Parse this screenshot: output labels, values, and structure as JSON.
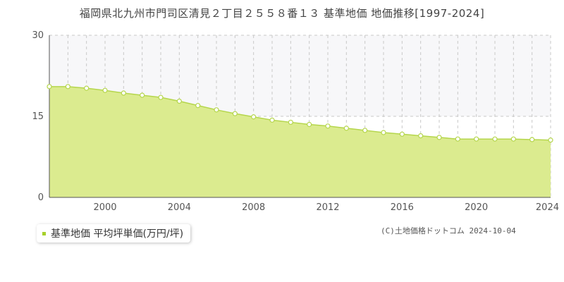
{
  "title": "福岡県北九州市門司区清見２丁目２５５８番１３ 基準地価 地価推移[1997-2024]",
  "legend_label": "基準地価 平均坪単価(万円/坪)",
  "copyright": "(C)土地価格ドットコム 2024-10-04",
  "colors": {
    "fill": "#dbeb8f",
    "line": "#b5d64c",
    "marker_fill": "#ffffff",
    "marker_stroke": "#b5d64c",
    "legend_marker": "#a6d02a",
    "grid": "#c8c8c8",
    "band": "#f7f7f9"
  },
  "chart_data": {
    "type": "area",
    "title": "福岡県北九州市門司区清見２丁目２５５８番１３ 基準地価 地価推移[1997-2024]",
    "xlabel": "",
    "ylabel": "",
    "xlim": [
      1997,
      2024
    ],
    "ylim": [
      0,
      30
    ],
    "y_ticks": [
      "0",
      "15",
      "30"
    ],
    "x_ticks": [
      "2000",
      "2004",
      "2008",
      "2012",
      "2016",
      "2020",
      "2024"
    ],
    "grid": true,
    "legend_position": "bottom-left",
    "series": [
      {
        "name": "基準地価 平均坪単価(万円/坪)",
        "x": [
          1997,
          1998,
          1999,
          2000,
          2001,
          2002,
          2003,
          2004,
          2005,
          2006,
          2007,
          2008,
          2009,
          2010,
          2011,
          2012,
          2013,
          2014,
          2015,
          2016,
          2017,
          2018,
          2019,
          2020,
          2021,
          2022,
          2023,
          2024
        ],
        "values": [
          20.5,
          20.5,
          20.2,
          19.8,
          19.3,
          18.9,
          18.5,
          17.8,
          17.0,
          16.2,
          15.5,
          14.9,
          14.3,
          13.9,
          13.5,
          13.2,
          12.8,
          12.4,
          12.0,
          11.7,
          11.4,
          11.1,
          10.8,
          10.8,
          10.8,
          10.8,
          10.7,
          10.6
        ]
      }
    ]
  }
}
